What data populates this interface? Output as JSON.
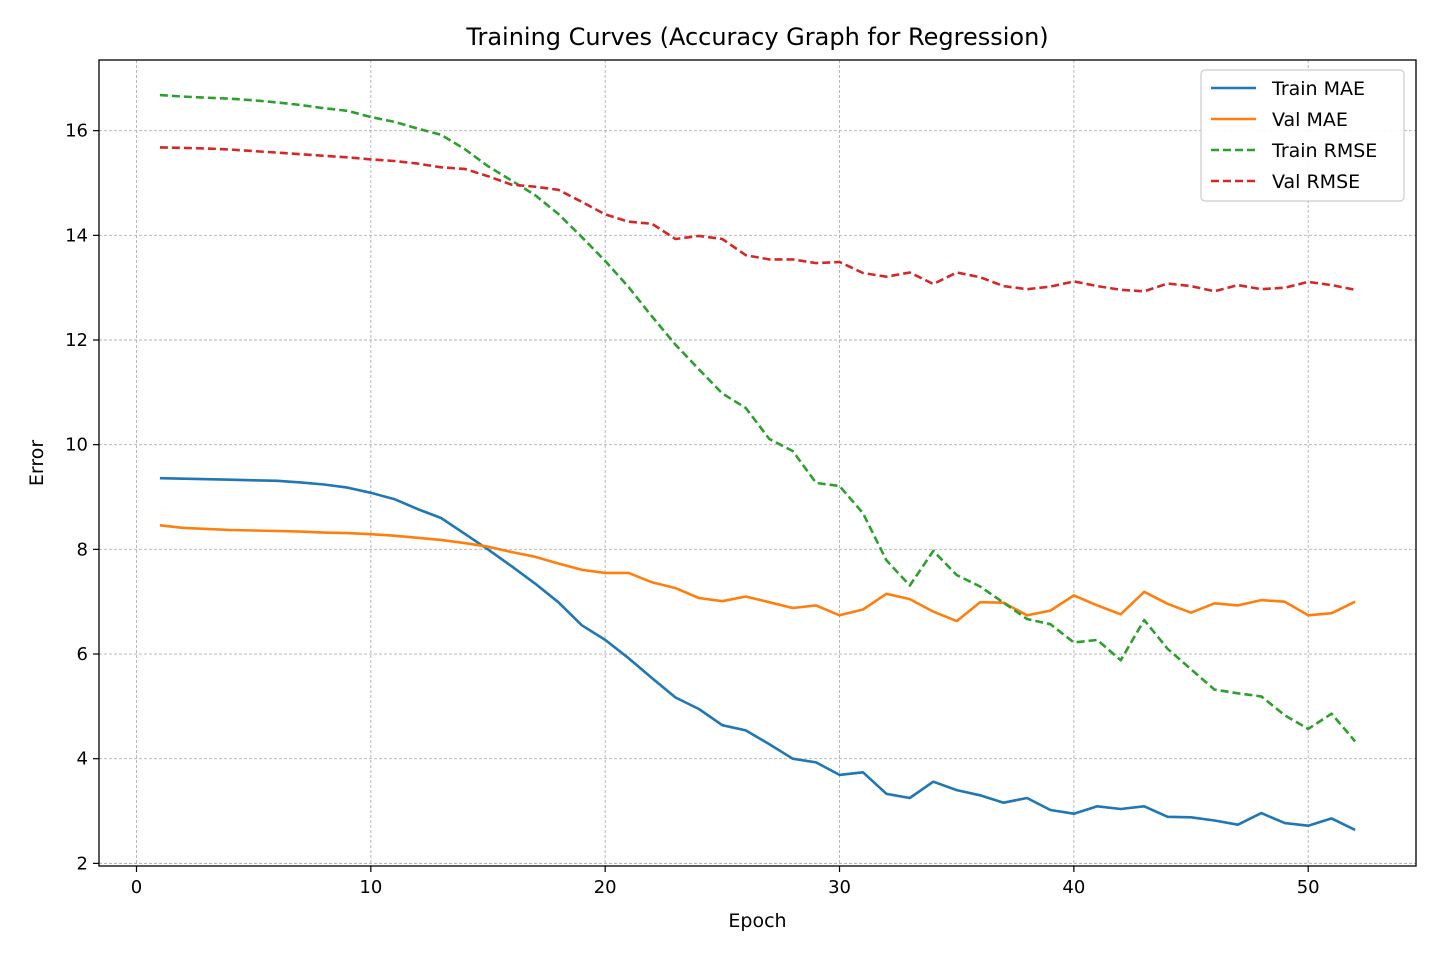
{
  "chart_data": {
    "type": "line",
    "title": "Training Curves (Accuracy Graph for Regression)",
    "xlabel": "Epoch",
    "ylabel": "Error",
    "xlim": [
      -1.6,
      54.6
    ],
    "ylim": [
      1.95,
      17.35
    ],
    "xticks": [
      0,
      10,
      20,
      30,
      40,
      50
    ],
    "yticks": [
      2,
      4,
      6,
      8,
      10,
      12,
      14,
      16
    ],
    "grid": true,
    "legend_position": "top-right",
    "x": [
      1,
      2,
      3,
      4,
      5,
      6,
      7,
      8,
      9,
      10,
      11,
      12,
      13,
      14,
      15,
      16,
      17,
      18,
      19,
      20,
      21,
      22,
      23,
      24,
      25,
      26,
      27,
      28,
      29,
      30,
      31,
      32,
      33,
      34,
      35,
      36,
      37,
      38,
      39,
      40,
      41,
      42,
      43,
      44,
      45,
      46,
      47,
      48,
      49,
      50,
      51,
      52
    ],
    "series": [
      {
        "name": "Train MAE",
        "color": "#1f77b4",
        "dashed": false,
        "values": [
          9.36,
          9.35,
          9.34,
          9.33,
          9.32,
          9.31,
          9.28,
          9.24,
          9.18,
          9.08,
          8.96,
          8.77,
          8.6,
          8.3,
          8.0,
          7.68,
          7.35,
          6.99,
          6.55,
          6.27,
          5.92,
          5.54,
          5.17,
          4.95,
          4.64,
          4.54,
          4.28,
          4.0,
          3.93,
          3.69,
          3.74,
          3.33,
          3.25,
          3.56,
          3.4,
          3.3,
          3.16,
          3.25,
          3.02,
          2.95,
          3.09,
          3.04,
          3.09,
          2.89,
          2.88,
          2.82,
          2.74,
          2.96,
          2.77,
          2.72,
          2.86,
          2.64
        ]
      },
      {
        "name": "Val MAE",
        "color": "#ff7f0e",
        "dashed": false,
        "values": [
          8.46,
          8.41,
          8.39,
          8.37,
          8.36,
          8.35,
          8.34,
          8.32,
          8.31,
          8.29,
          8.26,
          8.22,
          8.18,
          8.12,
          8.05,
          7.95,
          7.86,
          7.73,
          7.61,
          7.55,
          7.55,
          7.37,
          7.26,
          7.07,
          7.01,
          7.1,
          6.99,
          6.88,
          6.93,
          6.74,
          6.85,
          7.15,
          7.05,
          6.81,
          6.63,
          6.99,
          6.98,
          6.74,
          6.83,
          7.12,
          6.93,
          6.76,
          7.19,
          6.96,
          6.79,
          6.97,
          6.93,
          7.03,
          7.0,
          6.74,
          6.78,
          7.0
        ]
      },
      {
        "name": "Train RMSE",
        "color": "#2ca02c",
        "dashed": true,
        "values": [
          16.68,
          16.65,
          16.63,
          16.61,
          16.58,
          16.54,
          16.49,
          16.43,
          16.38,
          16.26,
          16.17,
          16.04,
          15.92,
          15.65,
          15.32,
          15.05,
          14.77,
          14.41,
          13.97,
          13.51,
          13.01,
          12.45,
          11.91,
          11.44,
          10.98,
          10.7,
          10.11,
          9.88,
          9.27,
          9.21,
          8.69,
          7.79,
          7.31,
          7.97,
          7.51,
          7.29,
          6.98,
          6.67,
          6.57,
          6.22,
          6.27,
          5.88,
          6.65,
          6.1,
          5.71,
          5.32,
          5.25,
          5.19,
          4.83,
          4.57,
          4.86,
          4.33
        ]
      },
      {
        "name": "Val RMSE",
        "color": "#d62728",
        "dashed": true,
        "values": [
          15.68,
          15.67,
          15.66,
          15.64,
          15.61,
          15.58,
          15.55,
          15.52,
          15.49,
          15.45,
          15.42,
          15.37,
          15.3,
          15.27,
          15.13,
          14.97,
          14.93,
          14.87,
          14.64,
          14.4,
          14.26,
          14.22,
          13.93,
          13.99,
          13.93,
          13.62,
          13.54,
          13.54,
          13.47,
          13.49,
          13.28,
          13.21,
          13.29,
          13.07,
          13.29,
          13.2,
          13.03,
          12.97,
          13.02,
          13.12,
          13.03,
          12.96,
          12.93,
          13.08,
          13.03,
          12.93,
          13.05,
          12.97,
          13.0,
          13.11,
          13.05,
          12.96
        ]
      }
    ]
  }
}
